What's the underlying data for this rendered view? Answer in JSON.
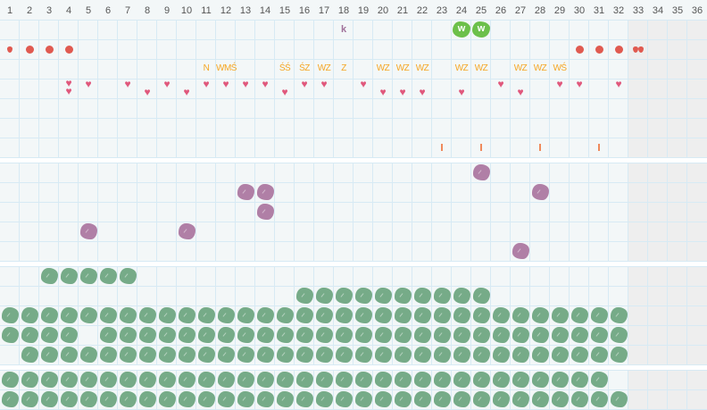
{
  "columns": [
    "1",
    "2",
    "3",
    "4",
    "5",
    "6",
    "7",
    "8",
    "9",
    "10",
    "11",
    "12",
    "13",
    "14",
    "15",
    "16",
    "17",
    "18",
    "19",
    "20",
    "21",
    "22",
    "23",
    "24",
    "25",
    "26",
    "27",
    "28",
    "29",
    "30",
    "31",
    "32",
    "33",
    "34",
    "35",
    "36"
  ],
  "disabled_columns_from": 33,
  "colors": {
    "grid_bg": "#f3f7f8",
    "grid_line": "#d7eaf4",
    "disabled": "#eeeeee",
    "green_blob": "#76ab88",
    "purple_blob": "#b07fa6",
    "bright_green": "#6cc04a",
    "heart": "#e0587c",
    "dot": "#e05a50",
    "label": "#f5a623",
    "tick": "#ef8a5c"
  },
  "sections": [
    {
      "rows": [
        {
          "marks": [
            {
              "col": 18,
              "type": "text-k",
              "label": "k"
            },
            {
              "col": 24,
              "type": "wblob",
              "label": "w"
            },
            {
              "col": 25,
              "type": "wblob",
              "label": "w"
            }
          ]
        },
        {
          "marks": [
            {
              "col": 1,
              "type": "drop"
            },
            {
              "col": 2,
              "type": "dot"
            },
            {
              "col": 3,
              "type": "dot"
            },
            {
              "col": 4,
              "type": "dot"
            },
            {
              "col": 30,
              "type": "dot"
            },
            {
              "col": 31,
              "type": "dot"
            },
            {
              "col": 32,
              "type": "dot"
            },
            {
              "col": 33,
              "type": "double-drop"
            }
          ]
        },
        {
          "marks": [
            {
              "col": 11,
              "type": "label",
              "label": "N"
            },
            {
              "col": 12,
              "type": "label",
              "label": "WMŚ"
            },
            {
              "col": 15,
              "type": "label",
              "label": "ŚŚ"
            },
            {
              "col": 16,
              "type": "label",
              "label": "ŚZ"
            },
            {
              "col": 17,
              "type": "label",
              "label": "WZ"
            },
            {
              "col": 18,
              "type": "label",
              "label": "Z"
            },
            {
              "col": 20,
              "type": "label",
              "label": "WZ"
            },
            {
              "col": 21,
              "type": "label",
              "label": "WZ"
            },
            {
              "col": 22,
              "type": "label",
              "label": "WZ"
            },
            {
              "col": 24,
              "type": "label",
              "label": "WZ"
            },
            {
              "col": 25,
              "type": "label",
              "label": "WZ"
            },
            {
              "col": 27,
              "type": "label",
              "label": "WZ"
            },
            {
              "col": 28,
              "type": "label",
              "label": "WZ"
            },
            {
              "col": 29,
              "type": "label",
              "label": "WŚ"
            }
          ]
        },
        {
          "hearts_high": [
            4,
            5,
            7,
            9,
            11,
            12,
            13,
            14,
            16,
            17,
            19,
            26,
            29,
            30,
            32
          ],
          "hearts_low": [
            4,
            8,
            10,
            15,
            20,
            21,
            22,
            24,
            27
          ]
        },
        {},
        {},
        {
          "marks": [
            {
              "col": 23,
              "type": "tick"
            },
            {
              "col": 25,
              "type": "tick"
            },
            {
              "col": 28,
              "type": "tick"
            },
            {
              "col": 31,
              "type": "tick"
            }
          ]
        }
      ]
    },
    {
      "rows": [
        {
          "purple": [
            25
          ]
        },
        {
          "purple": [
            13,
            14,
            28
          ]
        },
        {
          "purple": [
            14
          ]
        },
        {
          "purple": [
            5,
            10
          ]
        },
        {
          "purple": [
            27
          ]
        }
      ]
    },
    {
      "rows": [
        {
          "green_ranges": [
            [
              3,
              7
            ]
          ]
        },
        {
          "green_ranges": [
            [
              16,
              25
            ]
          ]
        },
        {
          "green_ranges": [
            [
              1,
              32
            ]
          ]
        },
        {
          "green_ranges": [
            [
              1,
              4
            ],
            [
              6,
              32
            ]
          ]
        },
        {
          "green_ranges": [
            [
              2,
              32
            ]
          ]
        }
      ]
    },
    {
      "rows": [
        {
          "green_ranges": [
            [
              1,
              31
            ]
          ]
        },
        {
          "green_ranges": [
            [
              1,
              32
            ]
          ]
        }
      ]
    }
  ]
}
